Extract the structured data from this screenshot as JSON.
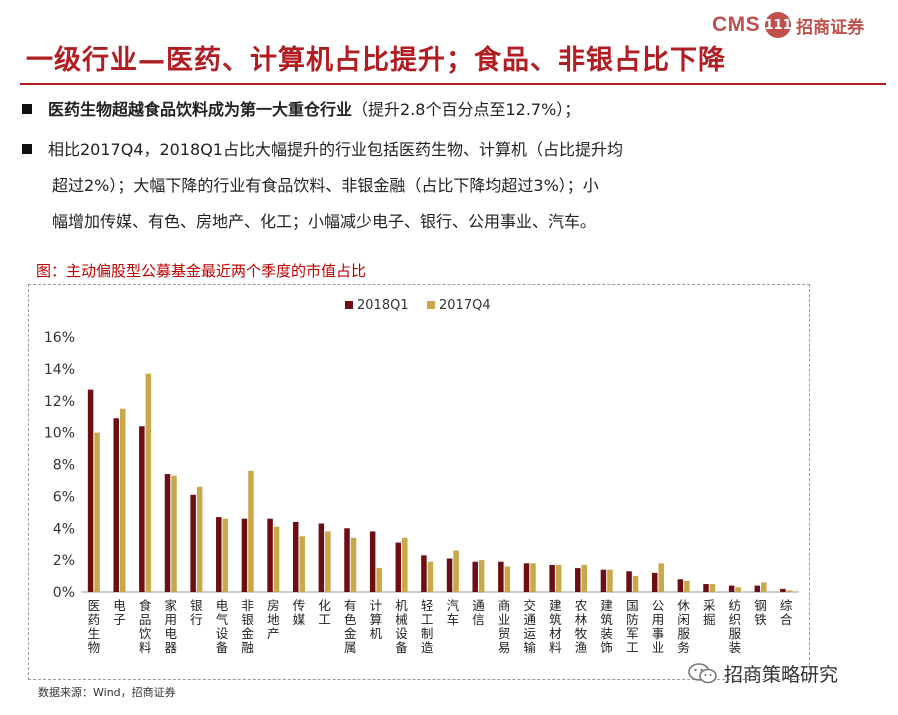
{
  "header": {
    "logo_text": "CMS",
    "logo_mark": "111",
    "logo_cn": "招商证券",
    "title": "一级行业—医药、计算机占比提升；食品、非银占比下降"
  },
  "bullets": {
    "b1_bold": "医药生物超越食品饮料成为第一大重仓行业",
    "b1_rest": "（提升2.8个百分点至12.7%）；",
    "b2_line1": "相比2017Q4，2018Q1占比大幅提升的行业包括医药生物、计算机（占比提升均",
    "b2_line2": "超过2%）；大幅下降的行业有食品饮料、非银金融（占比下降均超过3%）；小",
    "b2_line3": "幅增加传媒、有色、房地产、化工；小幅减少电子、银行、公用事业、汽车。"
  },
  "caption": "图：主动偏股型公募基金最近两个季度的市值占比",
  "source": "数据来源：Wind，招商证券",
  "watermark": "招商策略研究",
  "colors": {
    "s1": "#6b0f12",
    "s2": "#c9a84a",
    "accent": "#b01e23"
  },
  "chart_data": {
    "type": "bar",
    "categories": [
      "医药生物",
      "电子",
      "食品饮料",
      "家用电器",
      "银行",
      "电气设备",
      "非银金融",
      "房地产",
      "传媒",
      "化工",
      "有色金属",
      "计算机",
      "机械设备",
      "轻工制造",
      "汽车",
      "通信",
      "商业贸易",
      "交通运输",
      "建筑材料",
      "农林牧渔",
      "建筑装饰",
      "国防军工",
      "公用事业",
      "休闲服务",
      "采掘",
      "纺织服装",
      "钢铁",
      "综合"
    ],
    "series": [
      {
        "name": "2018Q1",
        "values": [
          12.7,
          10.9,
          10.4,
          7.4,
          6.1,
          4.7,
          4.6,
          4.6,
          4.4,
          4.3,
          4.0,
          3.8,
          3.1,
          2.3,
          2.1,
          1.9,
          1.9,
          1.8,
          1.7,
          1.5,
          1.4,
          1.3,
          1.2,
          0.8,
          0.5,
          0.4,
          0.4,
          0.2
        ]
      },
      {
        "name": "2017Q4",
        "values": [
          10.0,
          11.5,
          13.7,
          7.3,
          6.6,
          4.6,
          7.6,
          4.1,
          3.5,
          3.8,
          3.4,
          1.5,
          3.4,
          1.9,
          2.6,
          2.0,
          1.6,
          1.8,
          1.7,
          1.7,
          1.4,
          1.0,
          1.8,
          0.7,
          0.5,
          0.3,
          0.6,
          0.1
        ]
      }
    ],
    "ylim": [
      0,
      16
    ],
    "yticks": [
      "0%",
      "2%",
      "4%",
      "6%",
      "8%",
      "10%",
      "12%",
      "14%",
      "16%"
    ],
    "legend": "top-center",
    "grid": false
  }
}
